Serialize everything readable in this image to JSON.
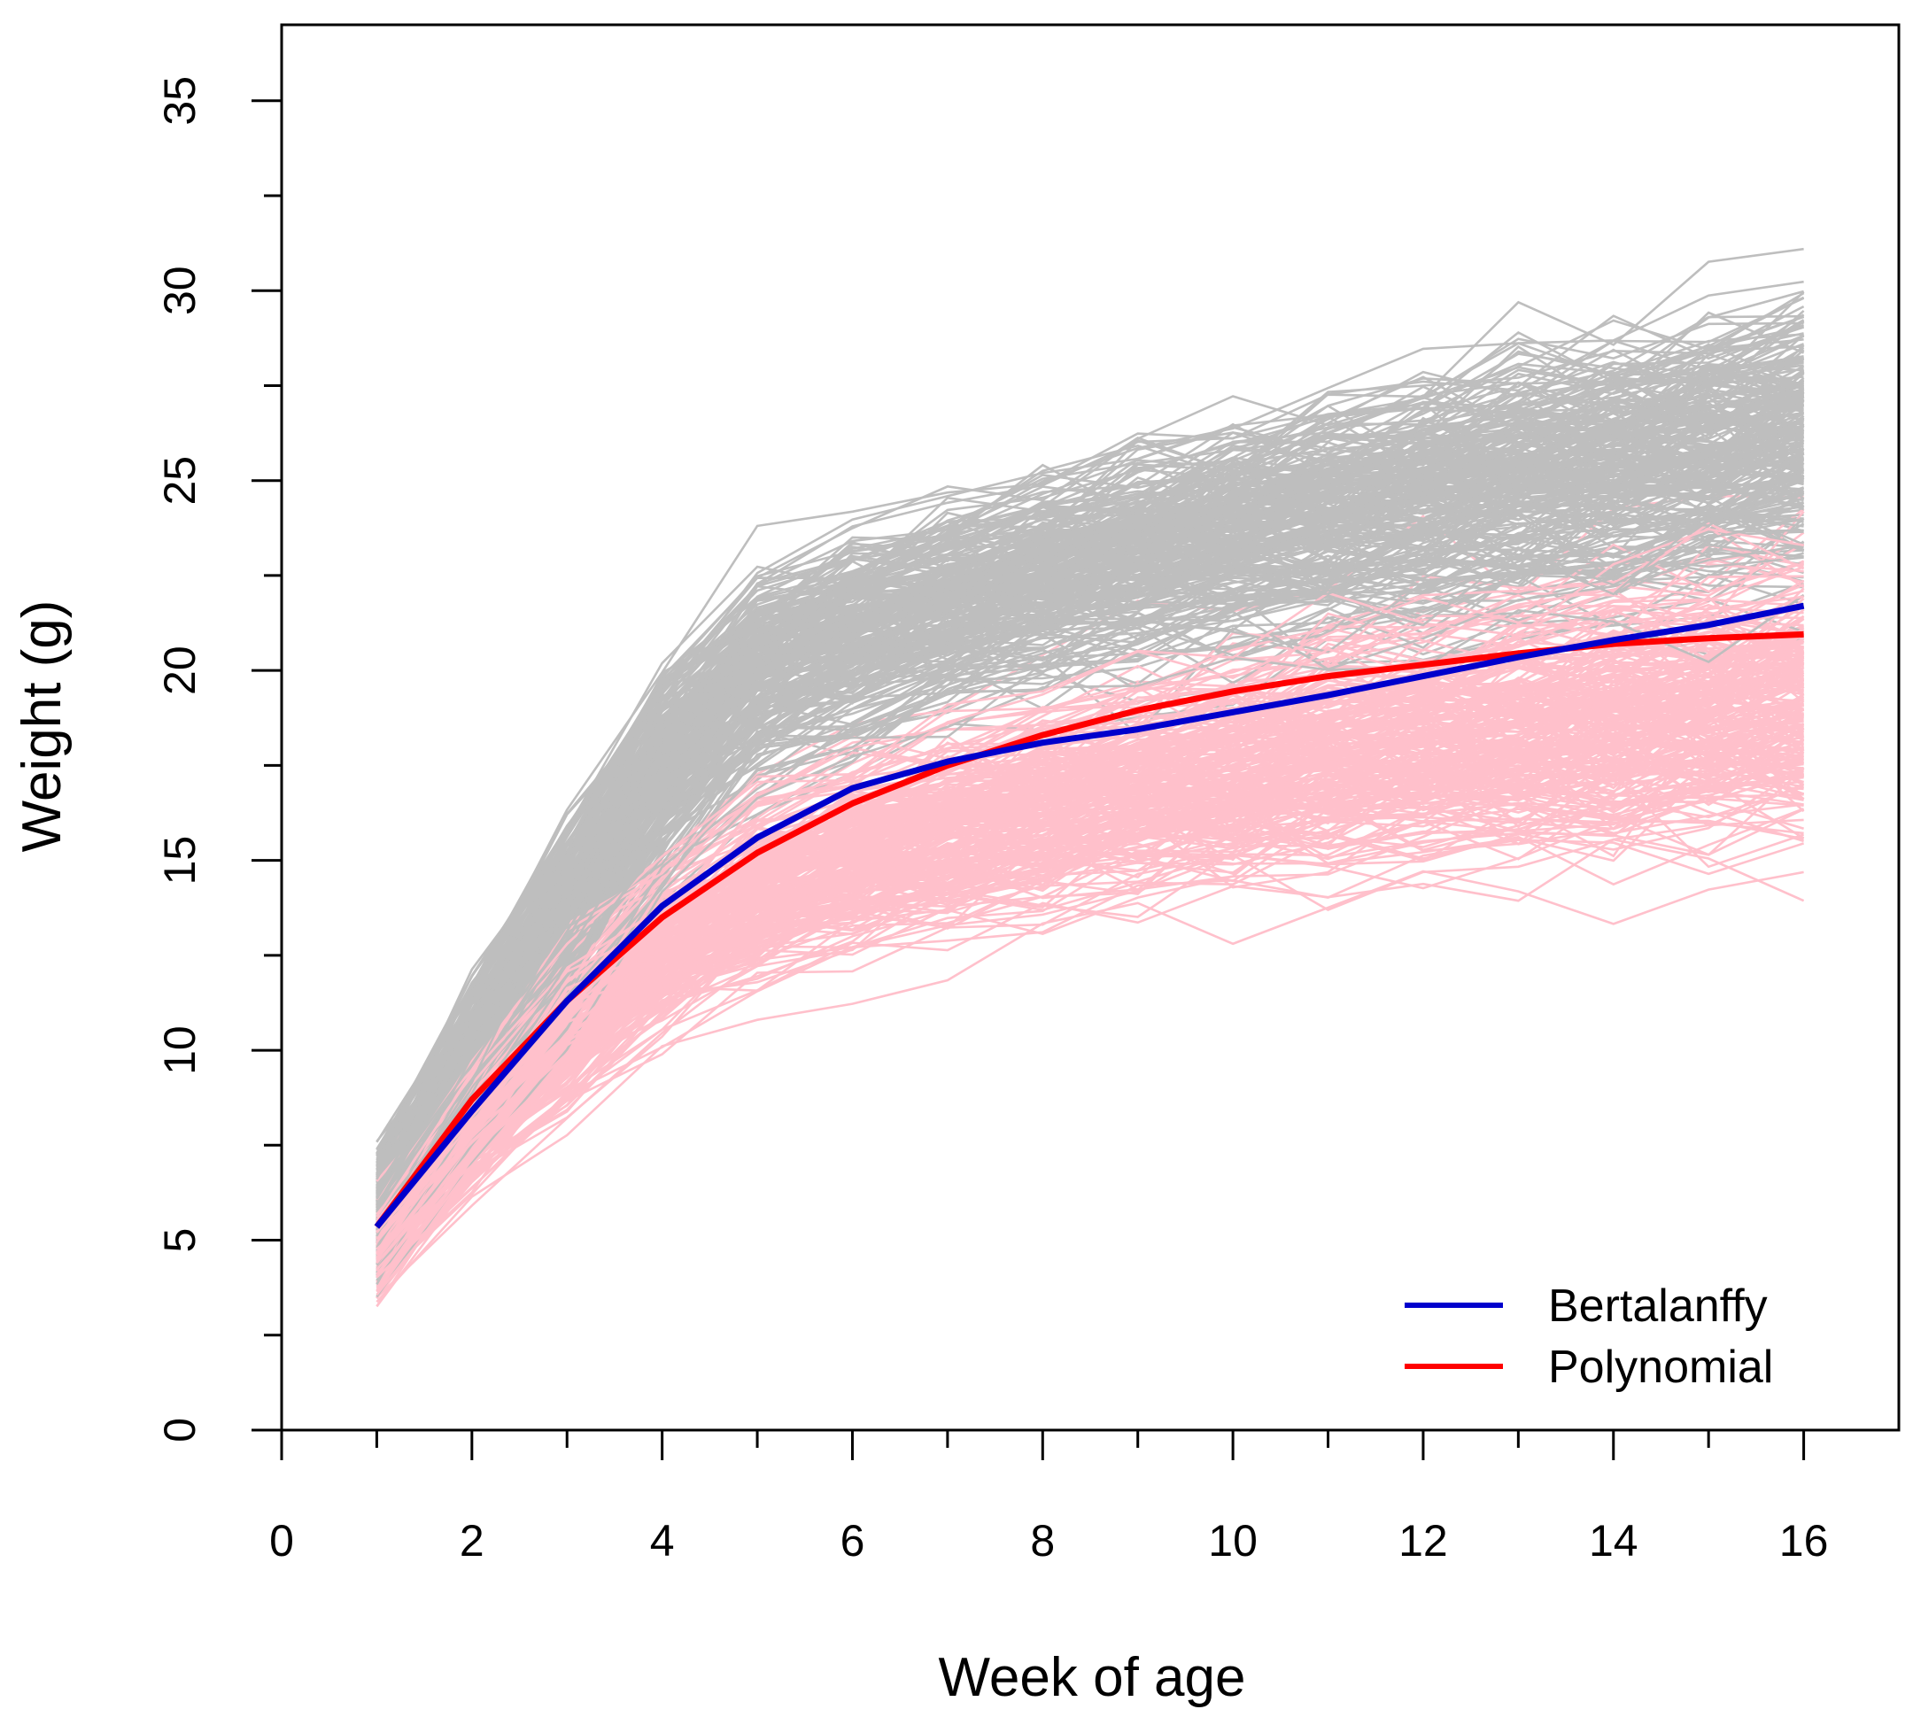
{
  "chart_data": {
    "type": "line",
    "title": "",
    "xlabel": "Week of age",
    "ylabel": "Weight (g)",
    "xlim": [
      0,
      17
    ],
    "ylim": [
      0,
      37
    ],
    "x_ticks": [
      0,
      2,
      4,
      6,
      8,
      10,
      12,
      14,
      16
    ],
    "x_tick_labels": [
      "0",
      "2",
      "4",
      "6",
      "8",
      "10",
      "12",
      "14",
      "16"
    ],
    "y_ticks": [
      0,
      5,
      10,
      15,
      20,
      25,
      30,
      35
    ],
    "y_tick_labels": [
      "0",
      "5",
      "10",
      "15",
      "20",
      "25",
      "30",
      "35"
    ],
    "grid": false,
    "legend_position": "bottom-right",
    "x": [
      1,
      2,
      3,
      4,
      5,
      6,
      7,
      8,
      9,
      10,
      11,
      12,
      13,
      14,
      15,
      16
    ],
    "series": [
      {
        "name": "Bertalanffy",
        "color": "#0000CC",
        "values": [
          5.35,
          8.4,
          11.3,
          13.8,
          15.6,
          16.9,
          17.6,
          18.1,
          18.45,
          18.9,
          19.35,
          19.85,
          20.35,
          20.8,
          21.2,
          21.7
        ]
      },
      {
        "name": "Polynomial",
        "color": "#FF0000",
        "values": [
          5.35,
          8.7,
          11.3,
          13.5,
          15.2,
          16.5,
          17.5,
          18.3,
          18.95,
          19.45,
          19.85,
          20.15,
          20.45,
          20.7,
          20.85,
          20.95
        ]
      }
    ],
    "background_groups": [
      {
        "name": "individual trajectories (gray)",
        "color": "#BEBEBE",
        "count": 260,
        "mean": [
          5.8,
          10.0,
          13.5,
          17.5,
          20.0,
          21.0,
          21.8,
          22.5,
          23.1,
          23.7,
          24.1,
          24.6,
          25.0,
          25.4,
          25.9,
          26.3
        ],
        "spread": [
          1.3,
          1.6,
          1.9,
          2.1,
          2.0,
          2.0,
          2.0,
          2.1,
          2.2,
          2.3,
          2.4,
          2.5,
          2.6,
          2.7,
          2.8,
          2.9
        ]
      },
      {
        "name": "individual trajectories (pink)",
        "color": "#FFC0CB",
        "count": 260,
        "mean": [
          5.0,
          8.0,
          10.6,
          12.8,
          14.3,
          15.2,
          15.9,
          16.5,
          17.0,
          17.5,
          17.9,
          18.3,
          18.6,
          18.9,
          19.2,
          19.5
        ],
        "spread": [
          1.1,
          1.3,
          1.5,
          1.7,
          1.8,
          1.9,
          2.0,
          2.1,
          2.2,
          2.3,
          2.4,
          2.5,
          2.6,
          2.7,
          2.8,
          2.9
        ]
      }
    ]
  }
}
